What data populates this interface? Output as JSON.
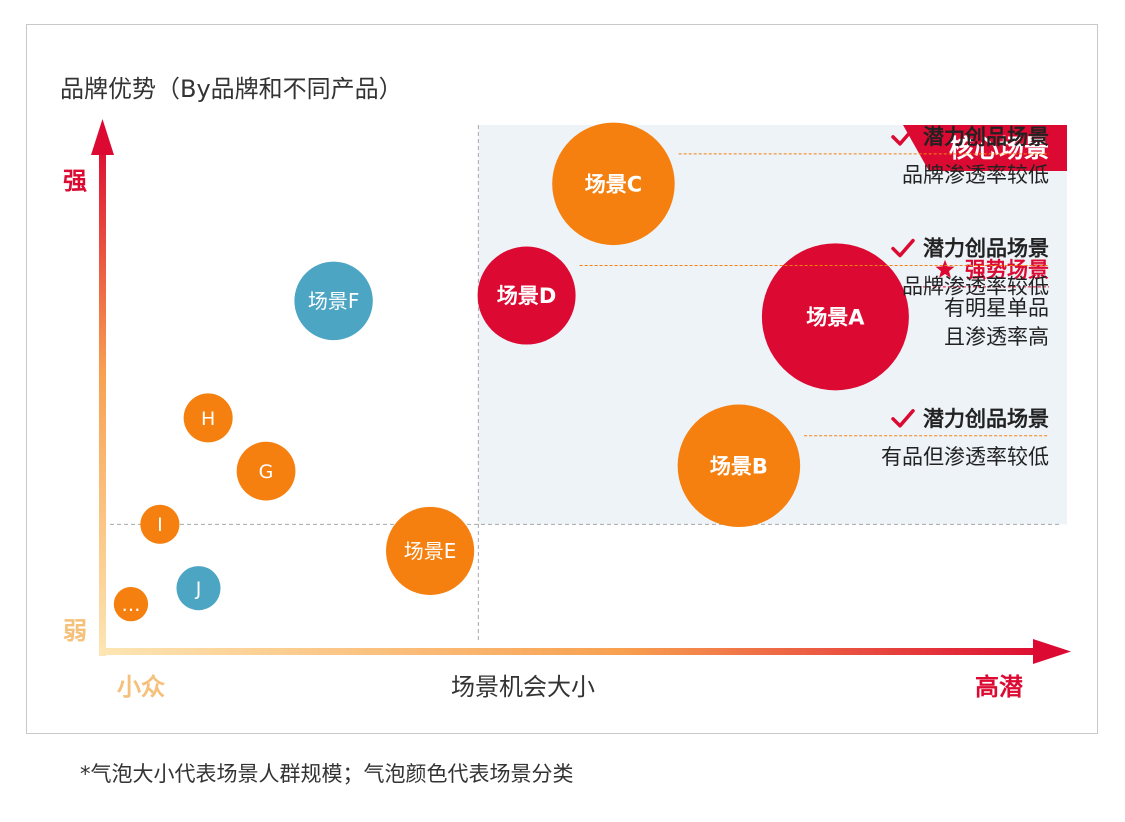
{
  "colors": {
    "orange": "#F5800F",
    "red": "#DC0A32",
    "teal": "#4BA5C3",
    "axis_light": "#FDE6B4",
    "axis_mid": "#F8A050",
    "axis_dark": "#DC0A32",
    "core_bg": "#EEF3F8",
    "label_light": "#F5C07A"
  },
  "chart_data": {
    "type": "scatter",
    "title": "品牌优势（By品牌和不同产品）",
    "xlabel": "场景机会大小",
    "x_min_label": "小众",
    "x_max_label": "高潜",
    "y_min_label": "弱",
    "y_max_label": "强",
    "core_region_label": "核心场景",
    "points": [
      {
        "name": "场景A",
        "x": 0.76,
        "y": 0.63,
        "size": 3,
        "color_group": "red",
        "annotation": {
          "tag": "强势场景",
          "icon": "star-icon",
          "lines": [
            "有明星单品",
            "且渗透率高"
          ]
        }
      },
      {
        "name": "场景B",
        "x": 0.66,
        "y": 0.35,
        "size": 2.5,
        "color_group": "orange",
        "annotation": {
          "tag": "潜力创品场景",
          "icon": "check-icon",
          "lines": [
            "有品但渗透率较低"
          ]
        }
      },
      {
        "name": "场景C",
        "x": 0.53,
        "y": 0.88,
        "size": 2.5,
        "color_group": "orange",
        "annotation": {
          "tag": "潜力创品场景",
          "icon": "check-icon",
          "lines": [
            "品牌渗透率较低"
          ]
        }
      },
      {
        "name": "场景D",
        "x": 0.44,
        "y": 0.67,
        "size": 2,
        "color_group": "red",
        "annotation": {
          "tag": "潜力创品场景",
          "icon": "check-icon",
          "lines": [
            "品牌渗透率较低"
          ]
        }
      },
      {
        "name": "场景E",
        "x": 0.34,
        "y": 0.19,
        "size": 1.8,
        "color_group": "orange"
      },
      {
        "name": "场景F",
        "x": 0.24,
        "y": 0.66,
        "size": 1.6,
        "color_group": "teal"
      },
      {
        "name": "H",
        "x": 0.11,
        "y": 0.44,
        "size": 1,
        "color_group": "orange"
      },
      {
        "name": "G",
        "x": 0.17,
        "y": 0.34,
        "size": 1.2,
        "color_group": "orange"
      },
      {
        "name": "I",
        "x": 0.06,
        "y": 0.24,
        "size": 0.8,
        "color_group": "orange"
      },
      {
        "name": "J",
        "x": 0.1,
        "y": 0.12,
        "size": 0.9,
        "color_group": "teal"
      },
      {
        "name": "…",
        "x": 0.03,
        "y": 0.09,
        "size": 0.7,
        "color_group": "orange"
      }
    ],
    "threshold_x": 0.39,
    "threshold_y": 0.24,
    "xlim": [
      0,
      1
    ],
    "ylim": [
      0,
      1
    ],
    "grid": false
  },
  "footnote": "*气泡大小代表场景人群规模；气泡颜色代表场景分类"
}
